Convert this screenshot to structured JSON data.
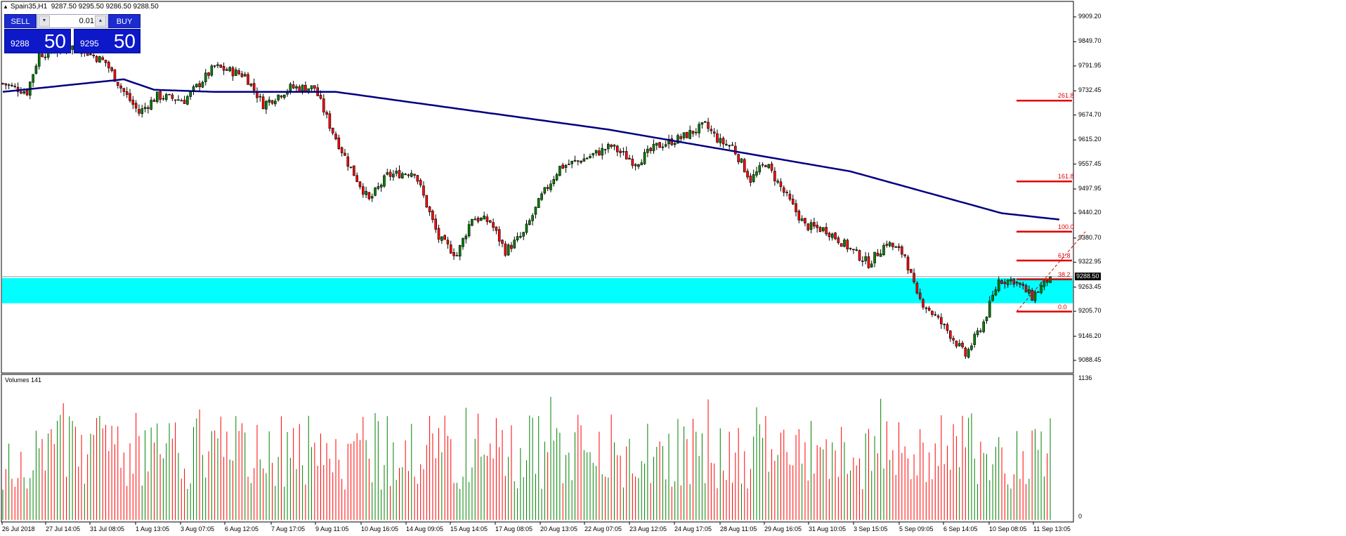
{
  "window": {
    "symbol_title": "Spain35,H1",
    "quote": "9287.50 9295.50 9286.50 9288.50"
  },
  "trade_panel": {
    "sell_label": "SELL",
    "buy_label": "BUY",
    "lot_size": "0.01",
    "bid_small": "9288",
    "bid_big": "50",
    "ask_small": "9295",
    "ask_big": "50"
  },
  "price_axis": [
    "9909.20",
    "9849.70",
    "9791.95",
    "9732.45",
    "9674.70",
    "9615.20",
    "9557.45",
    "9497.95",
    "9440.20",
    "9380.70",
    "9322.95",
    "9263.45",
    "9205.70",
    "9146.20",
    "9088.45"
  ],
  "current_price": "9288.50",
  "volume_axis": {
    "max": "1136",
    "min": "0"
  },
  "volume_title": "Volumes 141",
  "time_axis": [
    "26 Jul 2018",
    "27 Jul 14:05",
    "31 Jul 08:05",
    "1 Aug 13:05",
    "3 Aug 07:05",
    "6 Aug 12:05",
    "7 Aug 17:05",
    "9 Aug 11:05",
    "10 Aug 16:05",
    "14 Aug 09:05",
    "15 Aug 14:05",
    "17 Aug 08:05",
    "20 Aug 13:05",
    "22 Aug 07:05",
    "23 Aug 12:05",
    "24 Aug 17:05",
    "28 Aug 11:05",
    "29 Aug 16:05",
    "31 Aug 10:05",
    "3 Sep 15:05",
    "5 Sep 09:05",
    "6 Sep 14:05",
    "10 Sep 08:05",
    "11 Sep 13:05"
  ],
  "fibonacci_levels": [
    "261.8",
    "161.8",
    "100.0",
    "61.8",
    "38.2",
    "0.0"
  ],
  "colors": {
    "bull": "#008000",
    "bear": "#ff0000",
    "moving_average": "#000080",
    "zone": "#00ffff",
    "fibonacci": "#e00000",
    "panel_blue": "#0d18c9"
  },
  "chart_data": {
    "type": "candlestick",
    "title": "Spain35,H1",
    "ylim": [
      9070,
      9950
    ],
    "price_ticks": [
      9909.2,
      9849.7,
      9791.95,
      9732.45,
      9674.7,
      9615.2,
      9557.45,
      9497.95,
      9440.2,
      9380.7,
      9322.95,
      9263.45,
      9205.7,
      9146.2,
      9088.45
    ],
    "anchors": [
      {
        "i": 0,
        "p": 9750
      },
      {
        "i": 8,
        "p": 9730
      },
      {
        "i": 12,
        "p": 9820
      },
      {
        "i": 18,
        "p": 9830
      },
      {
        "i": 24,
        "p": 9840
      },
      {
        "i": 34,
        "p": 9800
      },
      {
        "i": 39,
        "p": 9740
      },
      {
        "i": 45,
        "p": 9680
      },
      {
        "i": 51,
        "p": 9720
      },
      {
        "i": 60,
        "p": 9710
      },
      {
        "i": 70,
        "p": 9790
      },
      {
        "i": 80,
        "p": 9770
      },
      {
        "i": 86,
        "p": 9700
      },
      {
        "i": 95,
        "p": 9740
      },
      {
        "i": 103,
        "p": 9740
      },
      {
        "i": 108,
        "p": 9650
      },
      {
        "i": 114,
        "p": 9560
      },
      {
        "i": 121,
        "p": 9470
      },
      {
        "i": 127,
        "p": 9530
      },
      {
        "i": 136,
        "p": 9540
      },
      {
        "i": 144,
        "p": 9380
      },
      {
        "i": 150,
        "p": 9340
      },
      {
        "i": 155,
        "p": 9430
      },
      {
        "i": 161,
        "p": 9420
      },
      {
        "i": 166,
        "p": 9350
      },
      {
        "i": 172,
        "p": 9390
      },
      {
        "i": 178,
        "p": 9480
      },
      {
        "i": 184,
        "p": 9550
      },
      {
        "i": 192,
        "p": 9570
      },
      {
        "i": 201,
        "p": 9600
      },
      {
        "i": 209,
        "p": 9560
      },
      {
        "i": 216,
        "p": 9600
      },
      {
        "i": 224,
        "p": 9620
      },
      {
        "i": 232,
        "p": 9650
      },
      {
        "i": 237,
        "p": 9610
      },
      {
        "i": 241,
        "p": 9600
      },
      {
        "i": 247,
        "p": 9520
      },
      {
        "i": 252,
        "p": 9560
      },
      {
        "i": 258,
        "p": 9490
      },
      {
        "i": 265,
        "p": 9410
      },
      {
        "i": 272,
        "p": 9400
      },
      {
        "i": 279,
        "p": 9360
      },
      {
        "i": 286,
        "p": 9320
      },
      {
        "i": 292,
        "p": 9370
      },
      {
        "i": 298,
        "p": 9340
      },
      {
        "i": 302,
        "p": 9240
      },
      {
        "i": 306,
        "p": 9210
      },
      {
        "i": 312,
        "p": 9160
      },
      {
        "i": 318,
        "p": 9100
      },
      {
        "i": 324,
        "p": 9180
      },
      {
        "i": 329,
        "p": 9280
      },
      {
        "i": 334,
        "p": 9280
      },
      {
        "i": 340,
        "p": 9240
      },
      {
        "i": 346,
        "p": 9288.5
      }
    ],
    "candle_count": 347,
    "moving_average": [
      {
        "i": 0,
        "p": 9730
      },
      {
        "i": 40,
        "p": 9760
      },
      {
        "i": 50,
        "p": 9735
      },
      {
        "i": 70,
        "p": 9730
      },
      {
        "i": 110,
        "p": 9730
      },
      {
        "i": 150,
        "p": 9690
      },
      {
        "i": 200,
        "p": 9640
      },
      {
        "i": 240,
        "p": 9590
      },
      {
        "i": 280,
        "p": 9540
      },
      {
        "i": 310,
        "p": 9480
      },
      {
        "i": 330,
        "p": 9440
      },
      {
        "i": 349,
        "p": 9425
      }
    ],
    "zone": {
      "top": 9285,
      "bottom": 9225
    },
    "fibonacci": {
      "low": 9203,
      "high": 9282,
      "levels": [
        0.0,
        38.2,
        61.8,
        100.0,
        161.8,
        261.8
      ],
      "start_index": 338
    },
    "volume": {
      "max": 1136,
      "series_seed": 141
    }
  }
}
